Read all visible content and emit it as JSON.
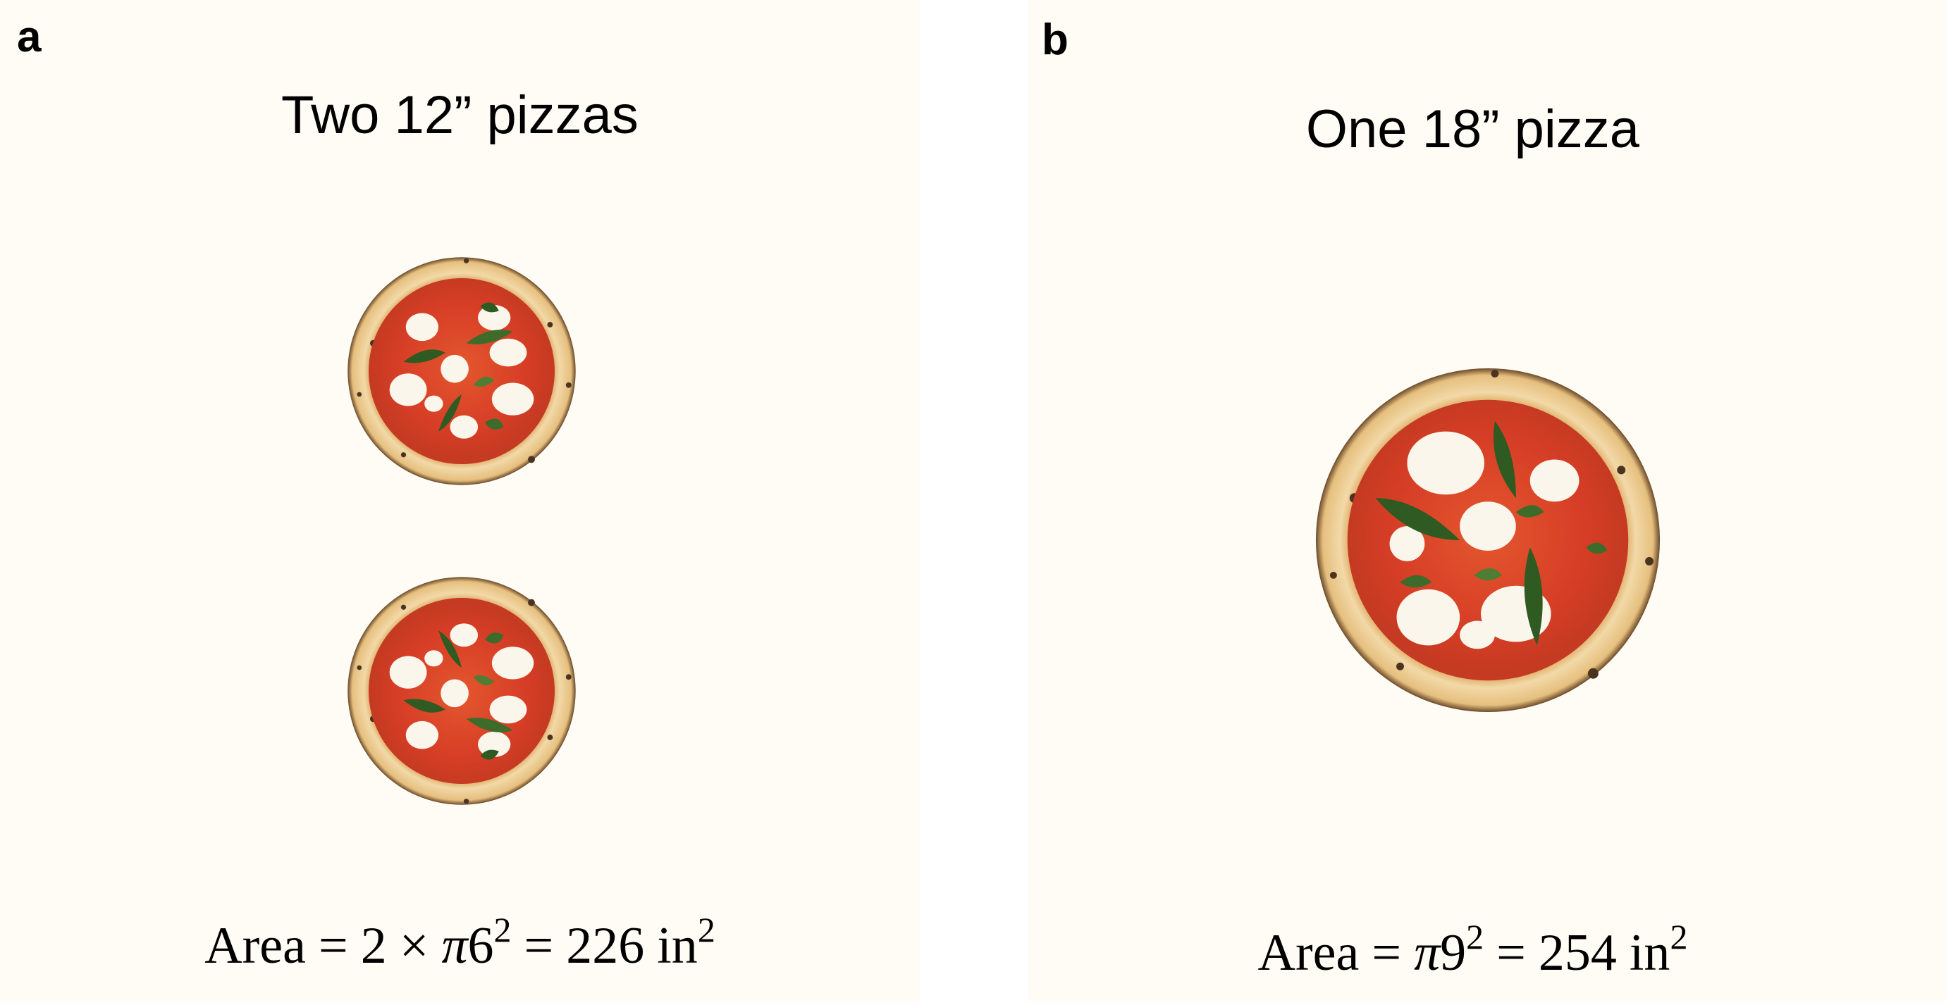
{
  "panels": [
    {
      "letter": "a",
      "title": "Two 12” pizzas",
      "formula": {
        "lhs": "Area",
        "eq1": "=",
        "coefficient": "2",
        "times": "×",
        "pi": "π",
        "radius": "6",
        "radius_exp": "2",
        "eq2": "=",
        "value": "226",
        "unit": "in",
        "unit_exp": "2"
      }
    },
    {
      "letter": "b",
      "title": "One 18” pizza",
      "formula": {
        "lhs": "Area",
        "eq1": "=",
        "pi": "π",
        "radius": "9",
        "radius_exp": "2",
        "eq2": "=",
        "value": "254",
        "unit": "in",
        "unit_exp": "2"
      }
    }
  ],
  "colors": {
    "panel_background": "#fffcf5",
    "crust": "#e8c585",
    "crust_char": "#4a3420",
    "sauce": "#d63d26",
    "mozzarella": "#fbf6ec",
    "basil": "#2f5a22"
  },
  "icons": {
    "pizza": "margherita-pizza-icon"
  }
}
